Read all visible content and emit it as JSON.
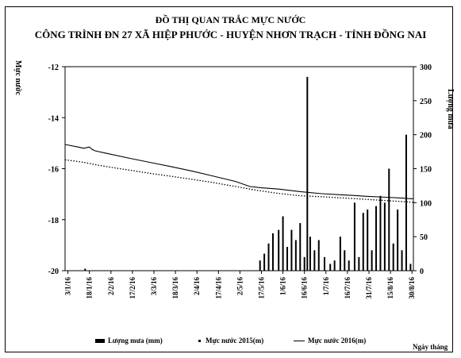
{
  "chart_data": {
    "type": "bar+line",
    "title": "ĐỒ THỊ QUAN TRẮC MỰC NƯỚC",
    "subtitle": "CÔNG TRÌNH ĐN 27 XÃ HIỆP PHƯỚC - HUYỆN NHƠN TRẠCH - TỈNH ĐỒNG NAI",
    "ylabel_left": "Mực nước",
    "ylabel_right": "Lượng mưa",
    "xlabel": "Ngày tháng",
    "ylim_left": [
      -20,
      -12
    ],
    "ylim_right": [
      0,
      300
    ],
    "yticks_left": [
      -12,
      -14,
      -16,
      -18,
      -20
    ],
    "yticks_right": [
      300,
      250,
      200,
      150,
      100,
      50,
      0
    ],
    "xlim": [
      1,
      244
    ],
    "xtick_labels": [
      "3/1/16",
      "18/1/16",
      "2/2/16",
      "17/2/16",
      "3/3/16",
      "18/3/16",
      "2/4/16",
      "17/4/16",
      "2/5/16",
      "17/5/16",
      "1/6/16",
      "16/6/16",
      "1/7/16",
      "16/7/16",
      "31/7/16",
      "15/8/16",
      "30/8/16"
    ],
    "xtick_days": [
      3,
      18,
      33,
      48,
      63,
      78,
      93,
      108,
      123,
      138,
      153,
      168,
      183,
      198,
      213,
      228,
      243
    ],
    "series": [
      {
        "name": "Lượng mưa (mm)",
        "kind": "bar",
        "axis": "right",
        "x": [
          15,
          137,
          140,
          143,
          146,
          150,
          153,
          156,
          159,
          162,
          165,
          168,
          170,
          172,
          175,
          178,
          182,
          186,
          189,
          193,
          196,
          199,
          203,
          206,
          209,
          212,
          215,
          218,
          221,
          224,
          227,
          230,
          233,
          236,
          239,
          242
        ],
        "values": [
          3,
          15,
          25,
          40,
          55,
          60,
          80,
          35,
          60,
          45,
          70,
          20,
          285,
          50,
          30,
          45,
          20,
          10,
          15,
          50,
          30,
          15,
          100,
          20,
          85,
          90,
          30,
          95,
          110,
          100,
          150,
          40,
          90,
          30,
          200,
          10
        ]
      },
      {
        "name": "Mực nước 2015(m)",
        "kind": "line",
        "axis": "left",
        "x": [
          1,
          10,
          15,
          20,
          30,
          45,
          60,
          75,
          90,
          105,
          120,
          135,
          150,
          165,
          180,
          195,
          210,
          225,
          240,
          244
        ],
        "values": [
          -15.65,
          -15.72,
          -15.76,
          -15.82,
          -15.92,
          -16.05,
          -16.18,
          -16.3,
          -16.42,
          -16.55,
          -16.7,
          -16.85,
          -16.97,
          -17.06,
          -17.1,
          -17.15,
          -17.2,
          -17.25,
          -17.3,
          -17.32
        ]
      },
      {
        "name": "Mực nước 2016(m)",
        "kind": "line",
        "axis": "left",
        "x": [
          1,
          10,
          14,
          18,
          20,
          22,
          30,
          45,
          60,
          75,
          90,
          105,
          120,
          130,
          138,
          150,
          165,
          180,
          195,
          202,
          210,
          225,
          235,
          240,
          244
        ],
        "values": [
          -15.05,
          -15.15,
          -15.2,
          -15.15,
          -15.25,
          -15.3,
          -15.4,
          -15.58,
          -15.75,
          -15.92,
          -16.1,
          -16.3,
          -16.5,
          -16.7,
          -16.75,
          -16.8,
          -16.9,
          -16.98,
          -17.03,
          -17.05,
          -17.08,
          -17.12,
          -17.15,
          -17.17,
          -17.18
        ]
      }
    ],
    "grid": false,
    "legend": "bottom",
    "colors": {
      "line": "#000000",
      "bar": "#000000",
      "background": "#ffffff"
    }
  },
  "legend": {
    "rain": "Lượng mưa (mm)",
    "wl2015": "Mực nước 2015(m)",
    "wl2016": "Mực nước 2016(m)"
  }
}
